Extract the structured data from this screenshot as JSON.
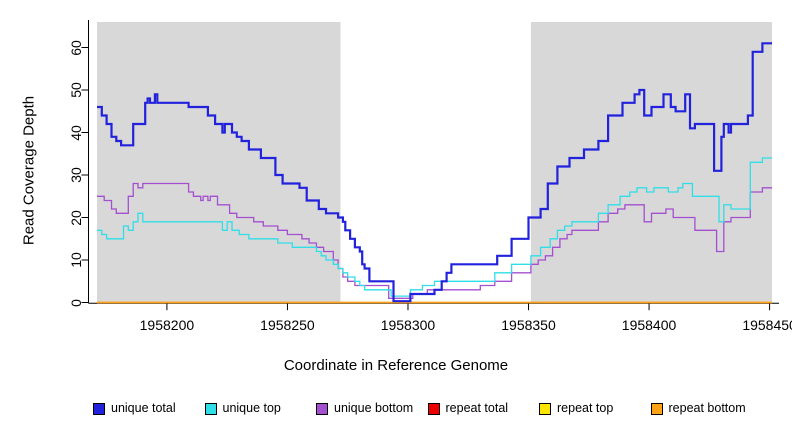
{
  "chart_data": {
    "type": "line",
    "variant": "step",
    "title": "",
    "xlabel": "Coordinate in Reference Genome",
    "ylabel": "Read Coverage Depth",
    "xlim": [
      1958171,
      1958451
    ],
    "ylim": [
      0,
      62
    ],
    "grid": false,
    "legend_position": "bottom",
    "plot_bg_color": "#d8d8d8",
    "highlight_region": {
      "x_start": 1958272,
      "x_end": 1958351,
      "color": "#ffffff"
    },
    "x_ticks": [
      1958200,
      1958250,
      1958300,
      1958350,
      1958400,
      1958450
    ],
    "x_tick_labels": [
      "1958200",
      "1958250",
      "1958300",
      "1958350",
      "1958400",
      "1958450"
    ],
    "y_ticks": [
      0,
      10,
      20,
      30,
      40,
      50,
      60
    ],
    "y_tick_labels": [
      "0",
      "10",
      "20",
      "30",
      "40",
      "50",
      "60"
    ],
    "legend_order": [
      "unique total",
      "unique top",
      "unique bottom",
      "repeat total",
      "repeat top",
      "repeat bottom"
    ],
    "series": [
      {
        "name": "repeat total",
        "color": "#ee0000",
        "line_width": 1.3,
        "points": [
          [
            1958171,
            0
          ],
          [
            1958451,
            0
          ]
        ]
      },
      {
        "name": "repeat top",
        "color": "#ffe600",
        "line_width": 1.3,
        "points": [
          [
            1958171,
            0
          ],
          [
            1958451,
            0
          ]
        ]
      },
      {
        "name": "repeat bottom",
        "color": "#ffa215",
        "line_width": 1.6,
        "points": [
          [
            1958171,
            0
          ],
          [
            1958451,
            0
          ]
        ]
      },
      {
        "name": "unique bottom",
        "color": "#a44fd0",
        "line_width": 1.3,
        "points": [
          [
            1958171,
            25
          ],
          [
            1958174,
            24
          ],
          [
            1958177,
            22
          ],
          [
            1958179,
            21
          ],
          [
            1958184,
            25
          ],
          [
            1958186,
            28
          ],
          [
            1958188,
            27
          ],
          [
            1958190,
            28
          ],
          [
            1958209,
            26
          ],
          [
            1958211,
            25
          ],
          [
            1958214,
            24
          ],
          [
            1958215,
            25
          ],
          [
            1958217,
            24
          ],
          [
            1958218,
            25
          ],
          [
            1958221,
            23
          ],
          [
            1958226,
            21
          ],
          [
            1958229,
            20
          ],
          [
            1958236,
            19
          ],
          [
            1958240,
            18
          ],
          [
            1958246,
            17
          ],
          [
            1958250,
            16
          ],
          [
            1958256,
            15
          ],
          [
            1958259,
            14
          ],
          [
            1958262,
            13
          ],
          [
            1958265,
            12
          ],
          [
            1958269,
            10
          ],
          [
            1958271,
            8
          ],
          [
            1958273,
            6
          ],
          [
            1958275,
            5
          ],
          [
            1958278,
            4
          ],
          [
            1958292,
            1
          ],
          [
            1958302,
            2
          ],
          [
            1958308,
            3
          ],
          [
            1958330,
            4
          ],
          [
            1958336,
            5
          ],
          [
            1958343,
            7
          ],
          [
            1958351,
            9
          ],
          [
            1958354,
            10
          ],
          [
            1958357,
            11
          ],
          [
            1958360,
            13
          ],
          [
            1958363,
            15
          ],
          [
            1958366,
            16
          ],
          [
            1958368,
            17
          ],
          [
            1958379,
            19
          ],
          [
            1958383,
            21
          ],
          [
            1958387,
            22
          ],
          [
            1958390,
            23
          ],
          [
            1958398,
            19
          ],
          [
            1958401,
            21
          ],
          [
            1958407,
            22
          ],
          [
            1958410,
            20
          ],
          [
            1958419,
            17
          ],
          [
            1958428,
            12
          ],
          [
            1958431,
            19
          ],
          [
            1958434,
            20
          ],
          [
            1958442,
            26
          ],
          [
            1958447,
            27
          ]
        ]
      },
      {
        "name": "unique top",
        "color": "#2fdee6",
        "line_width": 1.3,
        "points": [
          [
            1958171,
            17
          ],
          [
            1958173,
            16
          ],
          [
            1958175,
            15
          ],
          [
            1958182,
            18
          ],
          [
            1958184,
            17
          ],
          [
            1958186,
            19
          ],
          [
            1958188,
            21
          ],
          [
            1958190,
            19
          ],
          [
            1958221,
            19
          ],
          [
            1958223,
            17
          ],
          [
            1958225,
            19
          ],
          [
            1958227,
            17
          ],
          [
            1958230,
            16
          ],
          [
            1958234,
            15
          ],
          [
            1958246,
            14
          ],
          [
            1958252,
            13
          ],
          [
            1958262,
            12
          ],
          [
            1958264,
            11
          ],
          [
            1958266,
            10
          ],
          [
            1958269,
            9
          ],
          [
            1958271,
            8
          ],
          [
            1958273,
            7
          ],
          [
            1958275,
            6
          ],
          [
            1958278,
            5
          ],
          [
            1958280,
            4
          ],
          [
            1958282,
            3
          ],
          [
            1958293,
            1.5
          ],
          [
            1958301,
            3
          ],
          [
            1958306,
            4
          ],
          [
            1958311,
            5
          ],
          [
            1958336,
            7
          ],
          [
            1958343,
            9
          ],
          [
            1958351,
            11
          ],
          [
            1958355,
            13
          ],
          [
            1958359,
            15
          ],
          [
            1958362,
            17
          ],
          [
            1958365,
            18
          ],
          [
            1958368,
            19
          ],
          [
            1958379,
            21
          ],
          [
            1958383,
            23
          ],
          [
            1958388,
            25
          ],
          [
            1958392,
            26
          ],
          [
            1958395,
            27
          ],
          [
            1958399,
            26
          ],
          [
            1958402,
            27
          ],
          [
            1958408,
            26
          ],
          [
            1958412,
            27
          ],
          [
            1958414,
            28
          ],
          [
            1958418,
            25
          ],
          [
            1958429,
            19
          ],
          [
            1958431,
            23
          ],
          [
            1958434,
            22
          ],
          [
            1958442,
            33
          ],
          [
            1958447,
            34
          ]
        ]
      },
      {
        "name": "unique total",
        "color": "#2222dd",
        "line_width": 2.2,
        "points": [
          [
            1958171,
            46
          ],
          [
            1958173,
            44
          ],
          [
            1958175,
            42
          ],
          [
            1958177,
            39
          ],
          [
            1958179,
            38
          ],
          [
            1958181,
            37
          ],
          [
            1958186,
            42
          ],
          [
            1958191,
            47
          ],
          [
            1958192,
            48
          ],
          [
            1958193,
            47
          ],
          [
            1958195,
            49
          ],
          [
            1958196,
            47
          ],
          [
            1958209,
            46
          ],
          [
            1958217,
            44
          ],
          [
            1958220,
            42
          ],
          [
            1958223,
            40
          ],
          [
            1958224,
            42
          ],
          [
            1958227,
            40
          ],
          [
            1958229,
            39
          ],
          [
            1958231,
            38
          ],
          [
            1958234,
            36
          ],
          [
            1958239,
            34
          ],
          [
            1958245,
            30
          ],
          [
            1958248,
            28
          ],
          [
            1958255,
            27
          ],
          [
            1958258,
            24
          ],
          [
            1958263,
            22
          ],
          [
            1958266,
            21
          ],
          [
            1958271,
            20
          ],
          [
            1958273,
            19
          ],
          [
            1958274,
            17
          ],
          [
            1958276,
            15
          ],
          [
            1958278,
            13
          ],
          [
            1958280,
            12
          ],
          [
            1958281,
            9
          ],
          [
            1958282,
            8
          ],
          [
            1958284,
            5
          ],
          [
            1958294,
            0.3
          ],
          [
            1958301,
            2
          ],
          [
            1958311,
            3
          ],
          [
            1958314,
            5
          ],
          [
            1958316,
            7
          ],
          [
            1958318,
            9
          ],
          [
            1958337,
            11
          ],
          [
            1958343,
            15
          ],
          [
            1958350,
            20
          ],
          [
            1958355,
            22
          ],
          [
            1958358,
            28
          ],
          [
            1958362,
            32
          ],
          [
            1958367,
            34
          ],
          [
            1958373,
            36
          ],
          [
            1958379,
            38
          ],
          [
            1958383,
            44
          ],
          [
            1958389,
            47
          ],
          [
            1958394,
            49
          ],
          [
            1958396,
            50
          ],
          [
            1958398,
            44
          ],
          [
            1958401,
            46
          ],
          [
            1958406,
            49
          ],
          [
            1958409,
            46
          ],
          [
            1958411,
            45
          ],
          [
            1958415,
            49
          ],
          [
            1958417,
            41
          ],
          [
            1958419,
            42
          ],
          [
            1958427,
            31
          ],
          [
            1958430,
            39
          ],
          [
            1958431,
            42
          ],
          [
            1958433,
            40
          ],
          [
            1958434,
            42
          ],
          [
            1958441,
            44
          ],
          [
            1958443,
            59
          ],
          [
            1958447,
            61
          ]
        ]
      }
    ]
  }
}
